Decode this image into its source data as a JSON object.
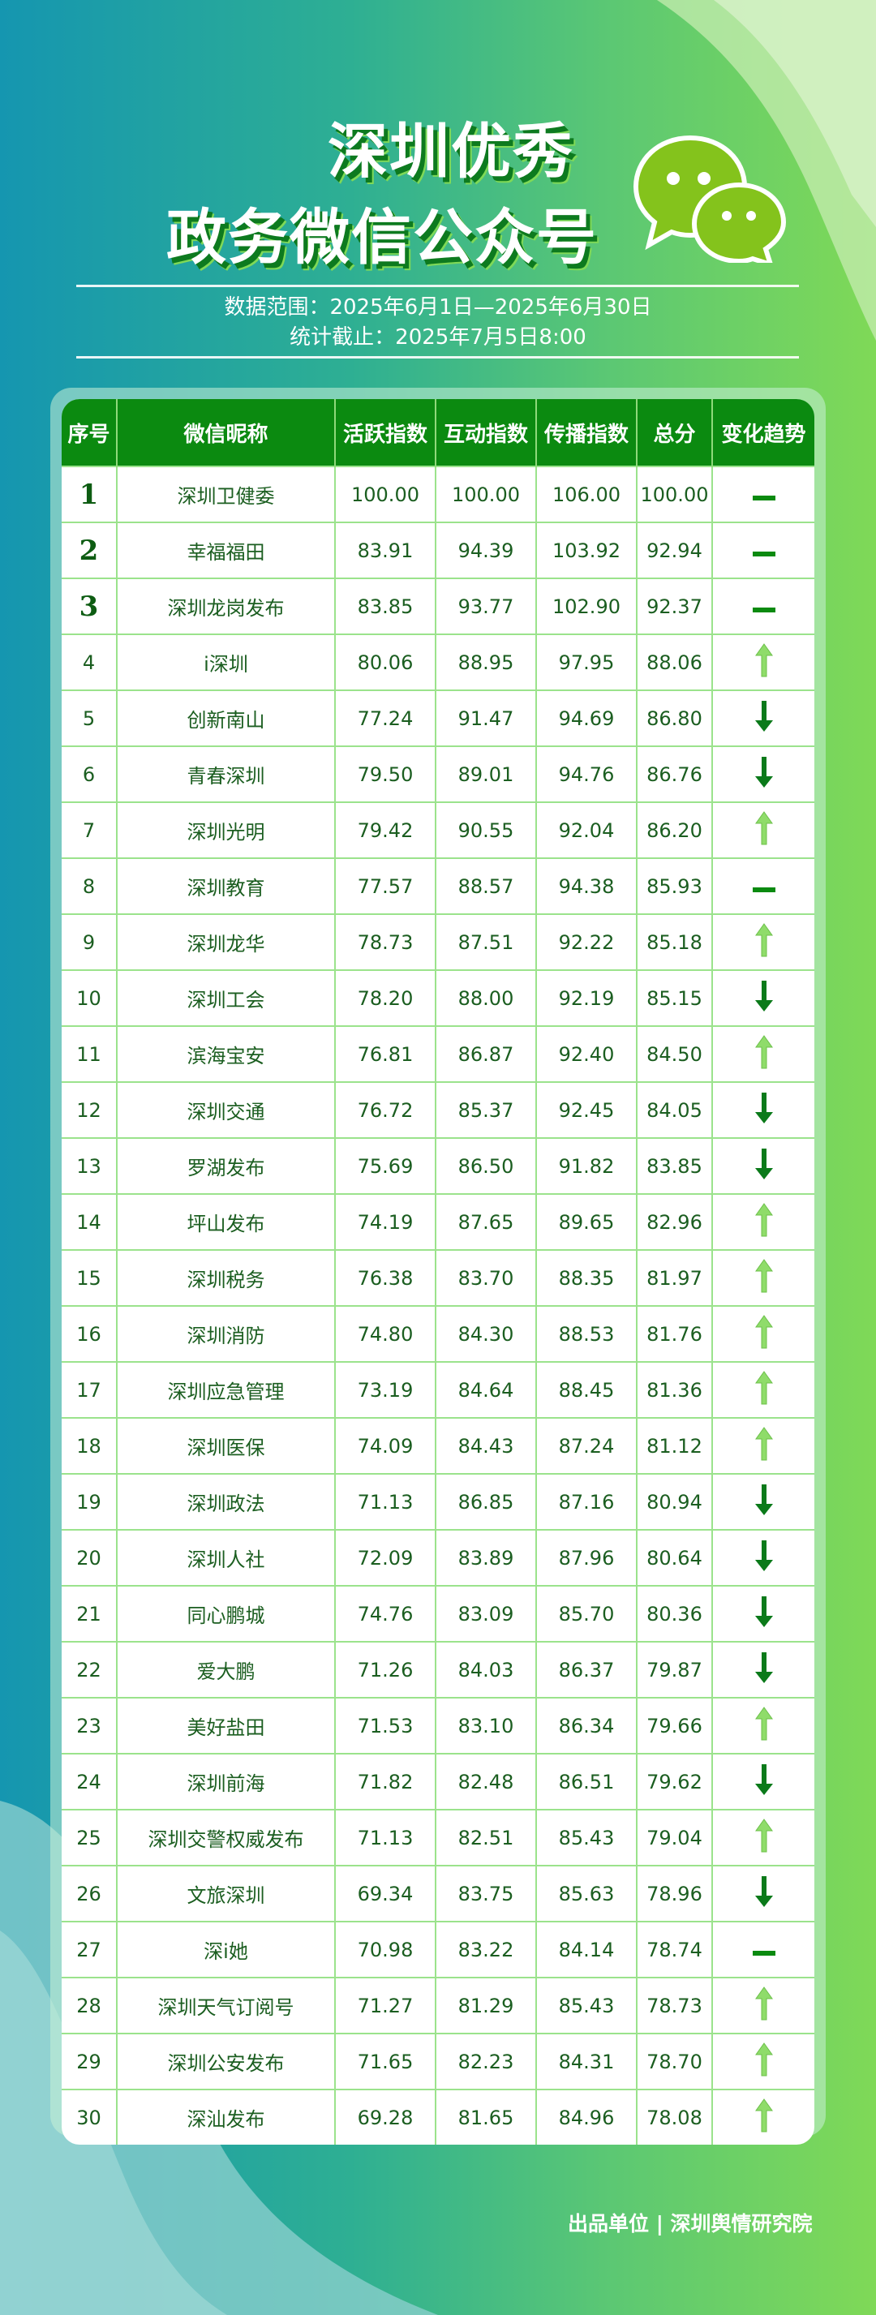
{
  "header": {
    "title_line1": "深圳优秀",
    "title_line2": "政务微信公众号",
    "data_range": "数据范围：2025年6月1日—2025年6月30日",
    "cutoff": "统计截止：2025年7月5日8:00"
  },
  "colors": {
    "header_bg": "#0b8a10",
    "text": "#1b5e20",
    "up": "#8fdc6a",
    "down": "#0b7a1a",
    "same": "#0b8a10",
    "grid": "#9be38c"
  },
  "table": {
    "columns": [
      "序号",
      "微信昵称",
      "活跃指数",
      "互动指数",
      "传播指数",
      "总分",
      "变化趋势"
    ],
    "rows": [
      {
        "rank": "1",
        "name": "深圳卫健委",
        "active": "100.00",
        "interact": "100.00",
        "spread": "106.00",
        "total": "100.00",
        "trend": "same"
      },
      {
        "rank": "2",
        "name": "幸福福田",
        "active": "83.91",
        "interact": "94.39",
        "spread": "103.92",
        "total": "92.94",
        "trend": "same"
      },
      {
        "rank": "3",
        "name": "深圳龙岗发布",
        "active": "83.85",
        "interact": "93.77",
        "spread": "102.90",
        "total": "92.37",
        "trend": "same"
      },
      {
        "rank": "4",
        "name": "i深圳",
        "active": "80.06",
        "interact": "88.95",
        "spread": "97.95",
        "total": "88.06",
        "trend": "up"
      },
      {
        "rank": "5",
        "name": "创新南山",
        "active": "77.24",
        "interact": "91.47",
        "spread": "94.69",
        "total": "86.80",
        "trend": "down"
      },
      {
        "rank": "6",
        "name": "青春深圳",
        "active": "79.50",
        "interact": "89.01",
        "spread": "94.76",
        "total": "86.76",
        "trend": "down"
      },
      {
        "rank": "7",
        "name": "深圳光明",
        "active": "79.42",
        "interact": "90.55",
        "spread": "92.04",
        "total": "86.20",
        "trend": "up"
      },
      {
        "rank": "8",
        "name": "深圳教育",
        "active": "77.57",
        "interact": "88.57",
        "spread": "94.38",
        "total": "85.93",
        "trend": "same"
      },
      {
        "rank": "9",
        "name": "深圳龙华",
        "active": "78.73",
        "interact": "87.51",
        "spread": "92.22",
        "total": "85.18",
        "trend": "up"
      },
      {
        "rank": "10",
        "name": "深圳工会",
        "active": "78.20",
        "interact": "88.00",
        "spread": "92.19",
        "total": "85.15",
        "trend": "down"
      },
      {
        "rank": "11",
        "name": "滨海宝安",
        "active": "76.81",
        "interact": "86.87",
        "spread": "92.40",
        "total": "84.50",
        "trend": "up"
      },
      {
        "rank": "12",
        "name": "深圳交通",
        "active": "76.72",
        "interact": "85.37",
        "spread": "92.45",
        "total": "84.05",
        "trend": "down"
      },
      {
        "rank": "13",
        "name": "罗湖发布",
        "active": "75.69",
        "interact": "86.50",
        "spread": "91.82",
        "total": "83.85",
        "trend": "down"
      },
      {
        "rank": "14",
        "name": "坪山发布",
        "active": "74.19",
        "interact": "87.65",
        "spread": "89.65",
        "total": "82.96",
        "trend": "up"
      },
      {
        "rank": "15",
        "name": "深圳税务",
        "active": "76.38",
        "interact": "83.70",
        "spread": "88.35",
        "total": "81.97",
        "trend": "up"
      },
      {
        "rank": "16",
        "name": "深圳消防",
        "active": "74.80",
        "interact": "84.30",
        "spread": "88.53",
        "total": "81.76",
        "trend": "up"
      },
      {
        "rank": "17",
        "name": "深圳应急管理",
        "active": "73.19",
        "interact": "84.64",
        "spread": "88.45",
        "total": "81.36",
        "trend": "up"
      },
      {
        "rank": "18",
        "name": "深圳医保",
        "active": "74.09",
        "interact": "84.43",
        "spread": "87.24",
        "total": "81.12",
        "trend": "up"
      },
      {
        "rank": "19",
        "name": "深圳政法",
        "active": "71.13",
        "interact": "86.85",
        "spread": "87.16",
        "total": "80.94",
        "trend": "down"
      },
      {
        "rank": "20",
        "name": "深圳人社",
        "active": "72.09",
        "interact": "83.89",
        "spread": "87.96",
        "total": "80.64",
        "trend": "down"
      },
      {
        "rank": "21",
        "name": "同心鹏城",
        "active": "74.76",
        "interact": "83.09",
        "spread": "85.70",
        "total": "80.36",
        "trend": "down"
      },
      {
        "rank": "22",
        "name": "爱大鹏",
        "active": "71.26",
        "interact": "84.03",
        "spread": "86.37",
        "total": "79.87",
        "trend": "down"
      },
      {
        "rank": "23",
        "name": "美好盐田",
        "active": "71.53",
        "interact": "83.10",
        "spread": "86.34",
        "total": "79.66",
        "trend": "up"
      },
      {
        "rank": "24",
        "name": "深圳前海",
        "active": "71.82",
        "interact": "82.48",
        "spread": "86.51",
        "total": "79.62",
        "trend": "down"
      },
      {
        "rank": "25",
        "name": "深圳交警权威发布",
        "active": "71.13",
        "interact": "82.51",
        "spread": "85.43",
        "total": "79.04",
        "trend": "up"
      },
      {
        "rank": "26",
        "name": "文旅深圳",
        "active": "69.34",
        "interact": "83.75",
        "spread": "85.63",
        "total": "78.96",
        "trend": "down"
      },
      {
        "rank": "27",
        "name": "深i她",
        "active": "70.98",
        "interact": "83.22",
        "spread": "84.14",
        "total": "78.74",
        "trend": "same"
      },
      {
        "rank": "28",
        "name": "深圳天气订阅号",
        "active": "71.27",
        "interact": "81.29",
        "spread": "85.43",
        "total": "78.73",
        "trend": "up"
      },
      {
        "rank": "29",
        "name": "深圳公安发布",
        "active": "71.65",
        "interact": "82.23",
        "spread": "84.31",
        "total": "78.70",
        "trend": "up"
      },
      {
        "rank": "30",
        "name": "深汕发布",
        "active": "69.28",
        "interact": "81.65",
        "spread": "84.96",
        "total": "78.08",
        "trend": "up"
      }
    ]
  },
  "footer": {
    "credit": "出品单位 | 深圳舆情研究院"
  }
}
